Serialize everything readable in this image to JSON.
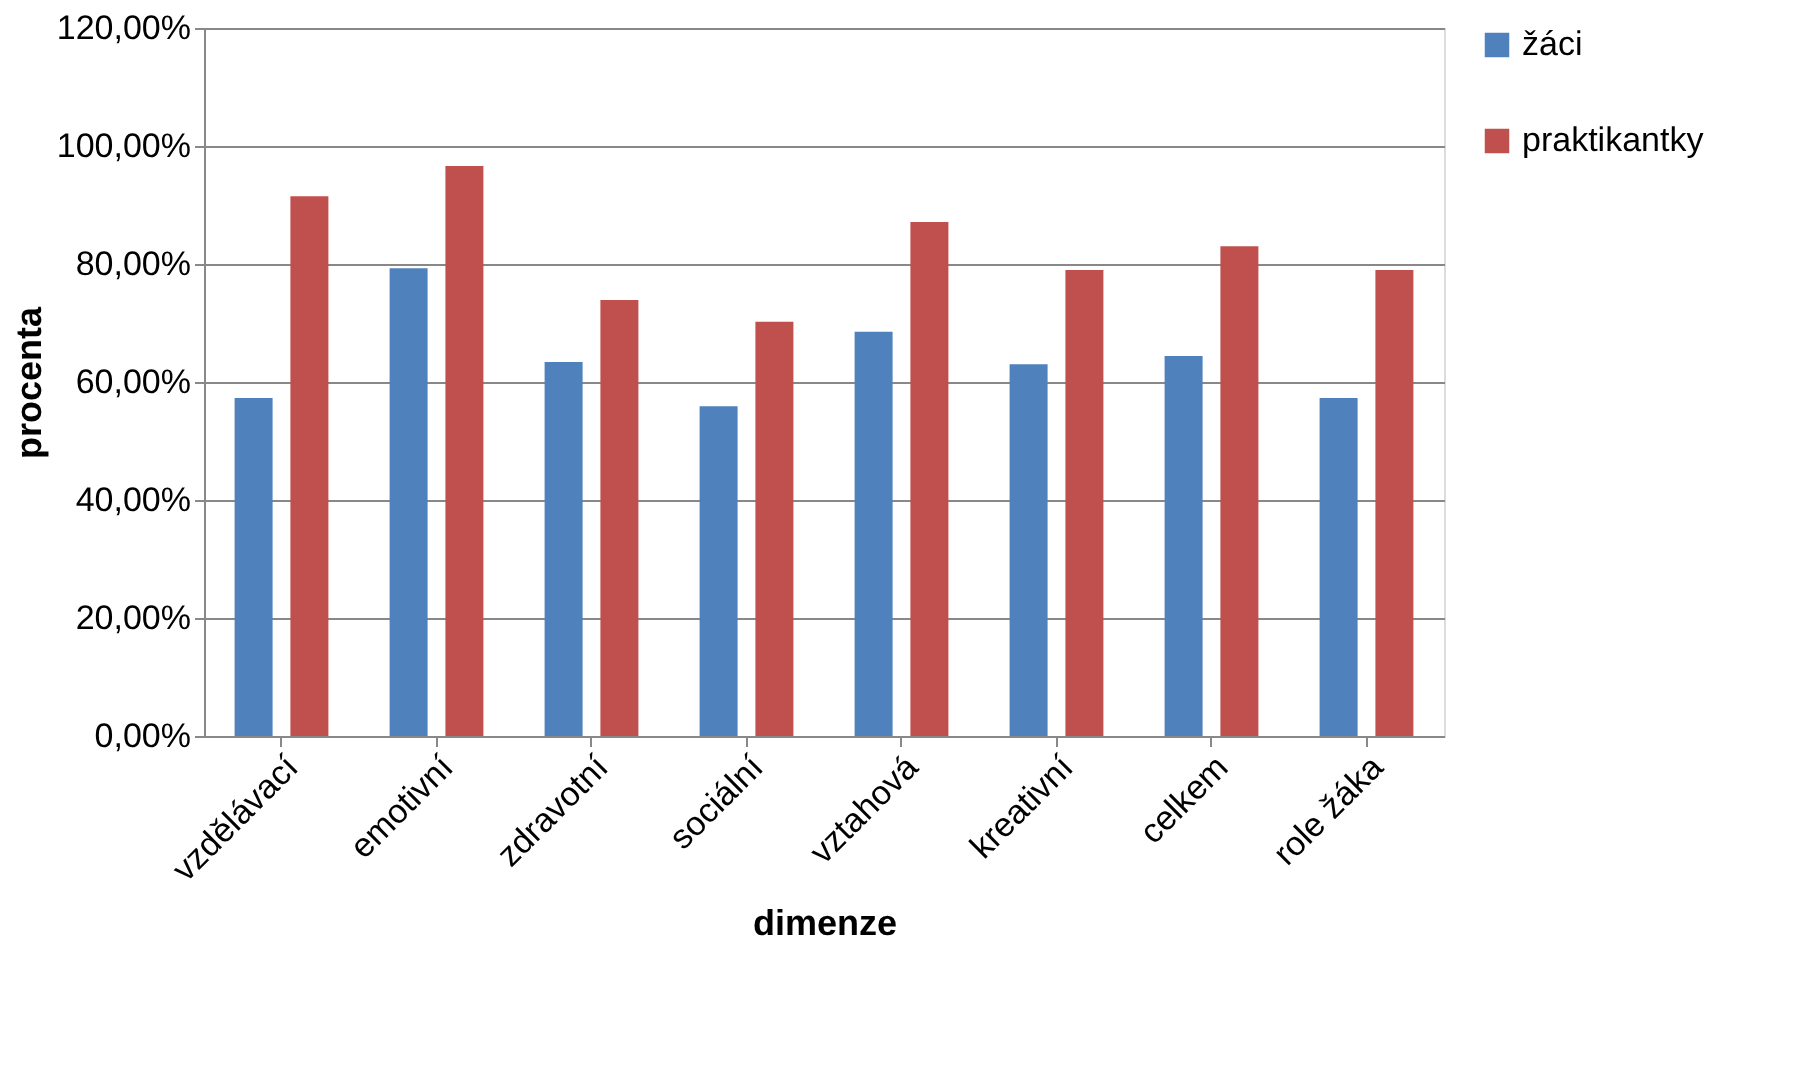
{
  "chart_data": {
    "type": "bar",
    "xlabel": "dimenze",
    "ylabel": "procenta",
    "categories": [
      "vzdělávací",
      "emotivní",
      "zdravotní",
      "sociální",
      "vztahová",
      "kreativní",
      "celkem",
      "role žáka"
    ],
    "series": [
      {
        "name": "žáci",
        "color": "#4f81bd",
        "values": [
          57.3,
          79.3,
          63.4,
          55.9,
          68.5,
          63.0,
          64.4,
          57.3
        ]
      },
      {
        "name": "praktikantky",
        "color": "#c0504d",
        "values": [
          91.5,
          96.6,
          73.9,
          70.2,
          87.1,
          79.0,
          83.0,
          79.0
        ]
      }
    ],
    "ylim": [
      0,
      120
    ],
    "yticks": [
      {
        "value": 0,
        "label": "0,00%"
      },
      {
        "value": 20,
        "label": "20,00%"
      },
      {
        "value": 40,
        "label": "40,00%"
      },
      {
        "value": 60,
        "label": "60,00%"
      },
      {
        "value": 80,
        "label": "80,00%"
      },
      {
        "value": 100,
        "label": "100,00%"
      },
      {
        "value": 120,
        "label": "120,00%"
      }
    ],
    "grid": "y",
    "legend": "right"
  }
}
